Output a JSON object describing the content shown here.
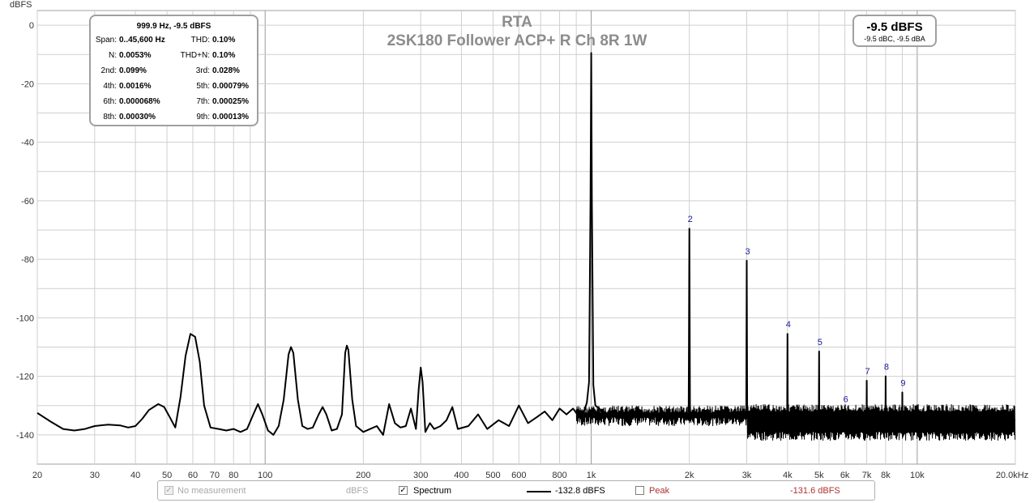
{
  "chart_data": {
    "type": "line",
    "title": "RTA",
    "subtitle": "2SK180 Follower ACP+ R Ch 8R 1W",
    "ylabel": "dBFS",
    "xlabel": "",
    "xscale": "log",
    "xlim": [
      20,
      20000
    ],
    "ylim": [
      -150,
      5
    ],
    "grid": true,
    "y_ticks": [
      "0",
      "-20",
      "-40",
      "-60",
      "-80",
      "-100",
      "-120",
      "-140"
    ],
    "y_tick_values": [
      0,
      -20,
      -40,
      -60,
      -80,
      -100,
      -120,
      -140
    ],
    "x_ticks": [
      "20",
      "30",
      "40",
      "50",
      "60",
      "70",
      "80",
      "100",
      "200",
      "300",
      "400",
      "500",
      "600",
      "800",
      "1k",
      "2k",
      "3k",
      "4k",
      "5k",
      "6k",
      "7k",
      "8k",
      "10k",
      "20.0kHz"
    ],
    "x_tick_values": [
      20,
      30,
      40,
      50,
      60,
      70,
      80,
      100,
      200,
      300,
      400,
      500,
      600,
      800,
      1000,
      2000,
      3000,
      4000,
      5000,
      6000,
      7000,
      8000,
      10000,
      20000
    ],
    "series": [
      {
        "name": "Spectrum",
        "color": "#000000",
        "points": [
          [
            20,
            -132.5
          ],
          [
            22,
            -135.5
          ],
          [
            24,
            -138
          ],
          [
            26,
            -138.5
          ],
          [
            28,
            -138
          ],
          [
            30,
            -137
          ],
          [
            33,
            -136.5
          ],
          [
            36,
            -136.8
          ],
          [
            38,
            -137.5
          ],
          [
            40,
            -137
          ],
          [
            42,
            -134.5
          ],
          [
            44,
            -131.5
          ],
          [
            47,
            -129.5
          ],
          [
            49,
            -130.5
          ],
          [
            51,
            -134
          ],
          [
            53,
            -137.5
          ],
          [
            55,
            -127
          ],
          [
            57,
            -113
          ],
          [
            59,
            -105.5
          ],
          [
            61,
            -106.5
          ],
          [
            63,
            -115
          ],
          [
            65,
            -130
          ],
          [
            68,
            -137.5
          ],
          [
            72,
            -138
          ],
          [
            76,
            -138.5
          ],
          [
            80,
            -138
          ],
          [
            84,
            -139
          ],
          [
            88,
            -138
          ],
          [
            92,
            -133
          ],
          [
            95,
            -129.5
          ],
          [
            98,
            -133
          ],
          [
            102,
            -138.5
          ],
          [
            106,
            -140
          ],
          [
            110,
            -137
          ],
          [
            114,
            -128
          ],
          [
            118,
            -112.5
          ],
          [
            120,
            -110
          ],
          [
            122,
            -112
          ],
          [
            126,
            -128
          ],
          [
            130,
            -137
          ],
          [
            135,
            -138
          ],
          [
            140,
            -137.5
          ],
          [
            146,
            -133
          ],
          [
            150,
            -130.5
          ],
          [
            154,
            -133
          ],
          [
            160,
            -138.5
          ],
          [
            166,
            -138
          ],
          [
            172,
            -133
          ],
          [
            176,
            -112
          ],
          [
            178,
            -109.5
          ],
          [
            180,
            -111
          ],
          [
            185,
            -128
          ],
          [
            190,
            -137
          ],
          [
            200,
            -139
          ],
          [
            210,
            -138
          ],
          [
            220,
            -137
          ],
          [
            230,
            -140
          ],
          [
            240,
            -129.5
          ],
          [
            250,
            -136
          ],
          [
            260,
            -137.5
          ],
          [
            270,
            -137
          ],
          [
            280,
            -131
          ],
          [
            290,
            -138
          ],
          [
            296,
            -124
          ],
          [
            300,
            -117
          ],
          [
            304,
            -122
          ],
          [
            310,
            -139
          ],
          [
            320,
            -136
          ],
          [
            330,
            -138
          ],
          [
            345,
            -137
          ],
          [
            360,
            -135
          ],
          [
            375,
            -130.5
          ],
          [
            390,
            -138
          ],
          [
            420,
            -137
          ],
          [
            450,
            -133
          ],
          [
            480,
            -138
          ],
          [
            520,
            -135
          ],
          [
            560,
            -137
          ],
          [
            600,
            -130
          ],
          [
            640,
            -136
          ],
          [
            680,
            -134
          ],
          [
            720,
            -132
          ],
          [
            760,
            -135
          ],
          [
            800,
            -131
          ],
          [
            840,
            -133
          ],
          [
            880,
            -131
          ],
          [
            920,
            -134
          ],
          [
            950,
            -132
          ],
          [
            970,
            -129
          ],
          [
            985,
            -122
          ],
          [
            995,
            -60
          ],
          [
            1000,
            -9.5
          ],
          [
            1005,
            -60
          ],
          [
            1015,
            -123
          ],
          [
            1030,
            -130
          ],
          [
            1060,
            -131
          ],
          [
            1100,
            -134
          ],
          [
            1200,
            -133
          ],
          [
            1300,
            -134
          ],
          [
            1400,
            -133
          ],
          [
            1500,
            -134
          ],
          [
            1600,
            -133
          ],
          [
            1700,
            -134
          ],
          [
            1800,
            -133.5
          ],
          [
            1900,
            -134
          ],
          [
            1990,
            -134
          ],
          [
            2000,
            -69.5
          ],
          [
            2010,
            -134
          ],
          [
            2200,
            -134
          ],
          [
            2400,
            -134
          ],
          [
            2600,
            -134
          ],
          [
            2800,
            -134
          ],
          [
            2990,
            -134
          ],
          [
            3000,
            -80.5
          ],
          [
            3010,
            -134
          ],
          [
            3300,
            -135
          ],
          [
            3600,
            -135
          ],
          [
            3990,
            -135
          ],
          [
            4000,
            -105.5
          ],
          [
            4010,
            -135
          ],
          [
            4400,
            -135
          ],
          [
            4800,
            -135
          ],
          [
            4990,
            -135
          ],
          [
            5000,
            -111.5
          ],
          [
            5010,
            -135
          ],
          [
            5500,
            -135
          ],
          [
            5990,
            -135
          ],
          [
            6000,
            -131
          ],
          [
            6010,
            -135
          ],
          [
            6500,
            -135
          ],
          [
            6990,
            -135
          ],
          [
            7000,
            -121.5
          ],
          [
            7010,
            -135
          ],
          [
            7500,
            -135
          ],
          [
            7990,
            -135
          ],
          [
            8000,
            -120
          ],
          [
            8010,
            -135
          ],
          [
            8500,
            -135
          ],
          [
            8990,
            -135
          ],
          [
            9000,
            -125.5
          ],
          [
            9010,
            -135
          ],
          [
            10000,
            -135
          ],
          [
            12000,
            -135
          ],
          [
            14000,
            -135
          ],
          [
            16000,
            -135
          ],
          [
            18000,
            -135
          ],
          [
            20000,
            -135
          ]
        ]
      }
    ],
    "noise_band": {
      "x_start": 900,
      "x_end": 20000,
      "dense_from": 3000,
      "y_min": -142,
      "y_max": -129.5
    },
    "harmonic_labels": [
      {
        "label": "2",
        "x": 2000,
        "y": -69.5
      },
      {
        "label": "3",
        "x": 3000,
        "y": -80.5
      },
      {
        "label": "4",
        "x": 4000,
        "y": -105.5
      },
      {
        "label": "5",
        "x": 5000,
        "y": -111.5
      },
      {
        "label": "6",
        "x": 6000,
        "y": -131
      },
      {
        "label": "7",
        "x": 7000,
        "y": -121.5
      },
      {
        "label": "8",
        "x": 8000,
        "y": -120
      },
      {
        "label": "9",
        "x": 9000,
        "y": -125.5
      }
    ]
  },
  "stats": {
    "header": "999.9 Hz, -9.5 dBFS",
    "rows": [
      {
        "l1": "Span:",
        "v1": "0..45,600 Hz",
        "l2": "THD:",
        "v2": "0.10%"
      },
      {
        "l1": "N:",
        "v1": "0.0053%",
        "l2": "THD+N:",
        "v2": "0.10%"
      },
      {
        "l1": "2nd:",
        "v1": "0.099%",
        "l2": "3rd:",
        "v2": "0.028%"
      },
      {
        "l1": "4th:",
        "v1": "0.0016%",
        "l2": "5th:",
        "v2": "0.00079%"
      },
      {
        "l1": "6th:",
        "v1": "0.000068%",
        "l2": "7th:",
        "v2": "0.00025%"
      },
      {
        "l1": "8th:",
        "v1": "0.00030%",
        "l2": "9th:",
        "v2": "0.00013%"
      }
    ]
  },
  "level": {
    "main": "-9.5 dBFS",
    "sub": "-9.5 dBC, -9.5 dBA"
  },
  "legend": {
    "no_measurement": {
      "label": "No measurement",
      "unit": "dBFS",
      "checked": true,
      "enabled": false
    },
    "spectrum": {
      "label": "Spectrum",
      "value": "-132.8 dBFS",
      "checked": true
    },
    "peak": {
      "label": "Peak",
      "value": "-131.6 dBFS",
      "checked": false
    },
    "peak_color": "#b03030"
  }
}
